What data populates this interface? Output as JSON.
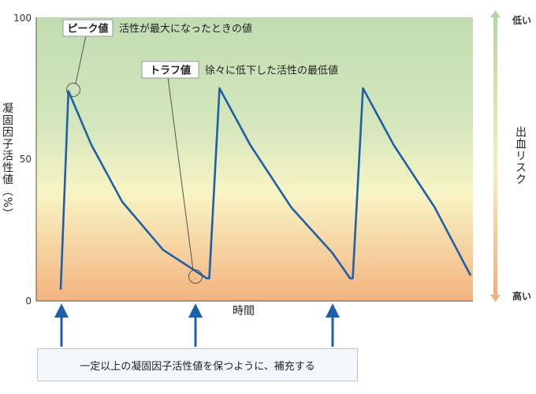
{
  "chart_data": {
    "type": "line",
    "ylabel": "凝固因子活性値（%）",
    "xlabel": "時間",
    "ylim": [
      0,
      100
    ],
    "yticks": [
      "0",
      "50",
      "100"
    ],
    "series": [
      {
        "x": [
          0,
          0.03,
          0.12,
          0.24,
          0.4,
          0.57,
          0.58,
          0.62,
          0.74,
          0.9,
          1.06,
          1.13,
          1.14,
          1.18,
          1.3,
          1.46,
          1.6
        ],
        "y": [
          4,
          74,
          55,
          35,
          18,
          8,
          8,
          75,
          55,
          33,
          17,
          8,
          8,
          75,
          55,
          33,
          9
        ]
      }
    ],
    "annotations": [
      {
        "name": "ピーク値",
        "text": "活性が最大になったときの値"
      },
      {
        "name": "トラフ値",
        "text": "徐々に低下した活性の最低値"
      }
    ],
    "risk_scale": {
      "title": "出血リスク",
      "low": "低い",
      "high": "高い"
    },
    "dose_box": "一定以上の凝固因子活性値を保つように、補充する",
    "colors": {
      "line": "#1f5fa8",
      "arrow": "#1f5fa8",
      "bg_top": "#c2dcb2",
      "bg_mid": "#f8f4c4",
      "bg_bottom": "#f2b27e"
    }
  }
}
